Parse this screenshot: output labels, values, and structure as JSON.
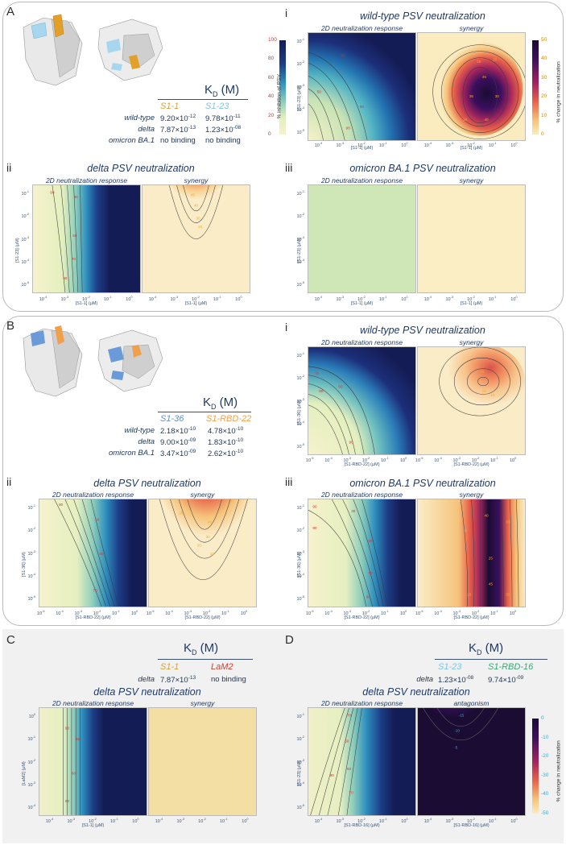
{
  "panels": {
    "A": {
      "letter": "A",
      "kd": {
        "title": "K",
        "sub": "D",
        "unit": " (M)",
        "col1": "S1-1",
        "col2": "S1-23",
        "col1_color": "#e3a028",
        "col2_color": "#7fc4e6",
        "rows": [
          {
            "label": "wild-type",
            "v1": "9.20×10",
            "e1": "-12",
            "v2": "9.78×10",
            "e2": "-11"
          },
          {
            "label": "delta",
            "v1": "7.87×10",
            "e1": "-13",
            "v2": "1.23×10",
            "e2": "-08"
          },
          {
            "label": "omicron BA.1",
            "v1": "no binding",
            "e1": "",
            "v2": "no binding",
            "e2": ""
          }
        ]
      },
      "i": {
        "letter": "i",
        "title": "wild-type PSV neutralization",
        "left": "2D neutralization response",
        "right": "synergy",
        "xlabel": "[S1-1] (μM)",
        "ylabel": "[S1-23] (μM)"
      },
      "ii": {
        "letter": "ii",
        "title": "delta PSV neutralization",
        "left": "2D neutralization response",
        "right": "synergy",
        "xlabel": "[S1-1] (μM)",
        "ylabel": "[S1-23] (μM)"
      },
      "iii": {
        "letter": "iii",
        "title": "omicron BA.1 PSV neutralization",
        "left": "2D neutralization response",
        "right": "synergy",
        "xlabel": "[S1-1] (μM)",
        "ylabel": "[S1-23] (μM)"
      }
    },
    "B": {
      "letter": "B",
      "kd": {
        "title": "K",
        "sub": "D",
        "unit": " (M)",
        "col1": "S1-36",
        "col2": "S1-RBD-22",
        "col1_color": "#5b8fd0",
        "col2_color": "#f0a04a",
        "rows": [
          {
            "label": "wild-type",
            "v1": "2.18×10",
            "e1": "-10",
            "v2": "4.78×10",
            "e2": "-10"
          },
          {
            "label": "delta",
            "v1": "9.00×10",
            "e1": "-09",
            "v2": "1.83×10",
            "e2": "-10"
          },
          {
            "label": "omicron BA.1",
            "v1": "3.47×10",
            "e1": "-09",
            "v2": "2.62×10",
            "e2": "-10"
          }
        ]
      },
      "i": {
        "letter": "i",
        "title": "wild-type PSV neutralization",
        "left": "2D neutralization response",
        "right": "synergy",
        "xlabel": "[S1-RBD-22] (μM)",
        "ylabel": "[S1-36] (μM)"
      },
      "ii": {
        "letter": "ii",
        "title": "delta PSV neutralization",
        "left": "2D neutralization response",
        "right": "synergy",
        "xlabel": "[S1-RBD-22] (μM)",
        "ylabel": "[S1-36] (μM)"
      },
      "iii": {
        "letter": "iii",
        "title": "omicron BA.1 PSV neutralization",
        "left": "2D neutralization response",
        "right": "synergy",
        "xlabel": "[S1-RBD-22] (μM)",
        "ylabel": "[S1-36] (μM)"
      }
    },
    "C": {
      "letter": "C",
      "kd": {
        "title": "K",
        "sub": "D",
        "unit": " (M)",
        "col1": "S1-1",
        "col2": "LaM2",
        "col1_color": "#e3a028",
        "col2_color": "#d0402e",
        "rows": [
          {
            "label": "delta",
            "v1": "7.87×10",
            "e1": "-13",
            "v2": "no binding",
            "e2": ""
          }
        ]
      },
      "plot": {
        "title": "delta PSV neutralization",
        "left": "2D neutralization response",
        "right": "synergy",
        "xlabel": "[S1-1] (μM)",
        "ylabel": "[LaM2] (μM)"
      }
    },
    "D": {
      "letter": "D",
      "kd": {
        "title": "K",
        "sub": "D",
        "unit": " (M)",
        "col1": "S1-23",
        "col2": "S1-RBD-16",
        "col1_color": "#7fc4e6",
        "col2_color": "#3aa876",
        "rows": [
          {
            "label": "delta",
            "v1": "1.23×10",
            "e1": "-08",
            "v2": "9.74×10",
            "e2": "-09"
          }
        ]
      },
      "plot": {
        "title": "delta PSV neutralization",
        "left": "2D neutralization response",
        "right": "antagonism",
        "xlabel": "[S1-RBD-16] (μM)",
        "ylabel": "[S1-23] (μM)"
      }
    }
  },
  "colorbars": {
    "inhibition": {
      "title": "% inhibition of PSV",
      "labels": [
        "100",
        "80",
        "60",
        "40",
        "20",
        "0"
      ],
      "label_color": "#d8322a"
    },
    "synergy": {
      "title": "% change in neutralization",
      "labels": [
        "50",
        "40",
        "30",
        "20",
        "10",
        "0"
      ],
      "label_color": "#c98a1c"
    },
    "antagonism": {
      "title": "% change in neutralization",
      "labels": [
        "0",
        "-10",
        "-20",
        "-30",
        "-40",
        "-50"
      ],
      "label_color": "#4aa8c8"
    }
  },
  "ticks": {
    "x_short": [
      "10-4",
      "10-3",
      "10-2",
      "10-1",
      "100"
    ],
    "x_long": [
      "10-5",
      "10-4",
      "10-3",
      "10-2",
      "10-1",
      "100"
    ],
    "y_A": [
      "10-1",
      "10-2",
      "10-3",
      "10-4",
      "10-5"
    ],
    "y_C": [
      "100",
      "10-1",
      "10-2",
      "10-3",
      "10-4"
    ]
  },
  "chart_data": [
    {
      "type": "heatmap",
      "title": "wild-type PSV neutralization (S1-1 + S1-23): 2D neutralization response",
      "xlabel": "[S1-1] (μM)",
      "ylabel": "[S1-23] (μM)",
      "x_range": [
        1e-05,
        1
      ],
      "y_range": [
        3e-06,
        0.3
      ],
      "color_range": [
        0,
        100
      ],
      "contours": [
        20,
        30,
        40,
        50,
        60,
        70,
        80,
        90
      ]
    },
    {
      "type": "heatmap",
      "title": "wild-type PSV neutralization (S1-1 + S1-23): synergy",
      "color_range": [
        0,
        50
      ],
      "contour_labels": [
        10,
        20,
        25,
        30,
        40,
        45
      ]
    },
    {
      "type": "heatmap",
      "title": "delta PSV neutralization (S1-1 + S1-23): synergy",
      "color_range": [
        0,
        50
      ],
      "contour_labels": [
        20,
        30,
        40,
        45
      ]
    },
    {
      "type": "heatmap",
      "title": "omicron BA.1 PSV neutralization (S1-1 + S1-23)",
      "note": "uniform, no neutralization or synergy"
    },
    {
      "type": "heatmap",
      "title": "wild-type PSV neutralization (S1-36 + S1-RBD-22): synergy",
      "color_range": [
        0,
        50
      ],
      "contour_labels": [
        10,
        15,
        20
      ]
    },
    {
      "type": "heatmap",
      "title": "delta PSV neutralization (S1-36 + S1-RBD-22): synergy",
      "color_range": [
        0,
        50
      ],
      "contour_labels": [
        10,
        20,
        25,
        30,
        40
      ]
    },
    {
      "type": "heatmap",
      "title": "omicron BA.1 PSV neutralization (S1-36 + S1-RBD-22): synergy",
      "color_range": [
        0,
        50
      ],
      "contour_labels": [
        10,
        15,
        25,
        30,
        40,
        45
      ]
    },
    {
      "type": "heatmap",
      "title": "delta PSV neutralization (S1-1 + LaM2): synergy",
      "note": "uniform, none"
    },
    {
      "type": "heatmap",
      "title": "delta PSV neutralization (S1-23 + S1-RBD-16): antagonism",
      "color_range": [
        -50,
        0
      ],
      "contour_labels": [
        -5,
        -10,
        -15
      ]
    }
  ]
}
